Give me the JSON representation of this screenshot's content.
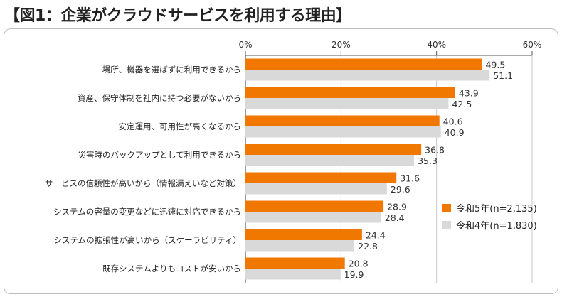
{
  "title": "【図1：企業がクラウドサービスを利用する理由】",
  "chart_data": {
    "type": "bar",
    "orientation": "horizontal",
    "title": "【図1：企業がクラウドサービスを利用する理由】",
    "xlim": [
      0,
      60
    ],
    "ticks": [
      0,
      20,
      40,
      60
    ],
    "tick_labels": [
      "0%",
      "20%",
      "40%",
      "60%"
    ],
    "grid": true,
    "legend_position": "right",
    "categories": [
      "場所、機器を選ばずに利用できるから",
      "資産、保守体制を社内に持つ必要がないから",
      "安定運用、可用性が高くなるから",
      "災害時のバックアップとして利用できるから",
      "サービスの信頼性が高いから（情報漏えいなど対策）",
      "システムの容量の変更などに迅速に対応できるから",
      "システムの拡張性が高いから（スケーラビリティ）",
      "既存システムよりもコストが安いから"
    ],
    "series": [
      {
        "name": "令和5年(n=2,135)",
        "color": "#f07800",
        "values": [
          49.5,
          43.9,
          40.6,
          36.8,
          31.6,
          28.9,
          24.4,
          20.8
        ]
      },
      {
        "name": "令和4年(n=1,830)",
        "color": "#d9d9d9",
        "values": [
          51.1,
          42.5,
          40.9,
          35.3,
          29.6,
          28.4,
          22.8,
          19.9
        ]
      }
    ]
  }
}
